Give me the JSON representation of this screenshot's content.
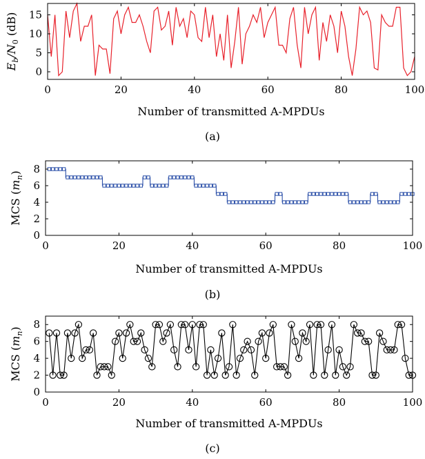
{
  "chart_data": [
    {
      "type": "line",
      "panel": "a",
      "caption": "(a)",
      "xlabel": "Number of transmitted A-MPDUs",
      "ylabel_main": "E",
      "ylabel_sub1": "b",
      "ylabel_mid": "/N",
      "ylabel_sub2": "0",
      "ylabel_unit": " (dB)",
      "xlim": [
        0,
        100
      ],
      "ylim": [
        -2,
        18
      ],
      "xticks": [
        "0",
        "20",
        "40",
        "60",
        "80",
        "100"
      ],
      "yticks": [
        "0",
        "5",
        "10",
        "15"
      ],
      "colors": {
        "line": "#e8202a"
      },
      "series": [
        {
          "x": [
            0,
            1,
            2,
            3,
            4,
            5,
            6,
            7,
            8,
            9,
            10,
            11,
            12,
            13,
            14,
            15,
            16,
            17,
            18,
            19,
            20,
            21,
            22,
            23,
            24,
            25,
            26,
            27,
            28,
            29,
            30,
            31,
            32,
            33,
            34,
            35,
            36,
            37,
            38,
            39,
            40,
            41,
            42,
            43,
            44,
            45,
            46,
            47,
            48,
            49,
            50,
            51,
            52,
            53,
            54,
            55,
            56,
            57,
            58,
            59,
            60,
            61,
            62,
            63,
            64,
            65,
            66,
            67,
            68,
            69,
            70,
            71,
            72,
            73,
            74,
            75,
            76,
            77,
            78,
            79,
            80,
            81,
            82,
            83,
            84,
            85,
            86,
            87,
            88,
            89,
            90,
            91,
            92,
            93,
            94,
            95,
            96,
            97,
            98,
            99,
            100
          ],
          "values": [
            15,
            4,
            15,
            -1,
            0,
            16,
            9,
            16,
            18,
            8,
            12,
            12,
            15,
            -1,
            7,
            6,
            6,
            -0.5,
            14,
            16,
            10,
            15,
            17,
            13,
            13,
            15,
            12,
            8,
            5,
            16,
            17,
            11,
            12,
            16,
            7,
            17,
            12,
            14,
            9,
            16,
            15,
            9,
            8,
            17,
            9,
            15,
            4,
            10,
            3,
            15,
            1,
            8,
            17,
            2,
            10,
            12,
            15,
            13,
            17,
            9,
            13,
            15,
            17,
            7,
            7,
            5,
            14,
            17,
            7,
            1,
            17,
            10,
            15,
            17,
            3,
            13,
            8,
            15,
            12,
            5,
            16,
            12,
            4,
            -1,
            6,
            17,
            15,
            16,
            13,
            1,
            0.5,
            15,
            13,
            12,
            12,
            17,
            17,
            1,
            -1,
            0,
            4
          ]
        }
      ]
    },
    {
      "type": "line",
      "panel": "b",
      "caption": "(b)",
      "xlabel": "Number of transmitted A-MPDUs",
      "ylabel_main": "MCS (",
      "ylabel_var": "m",
      "ylabel_sub": "n",
      "ylabel_end": ")",
      "xlim": [
        0,
        100
      ],
      "ylim": [
        0,
        9
      ],
      "xticks": [
        "0",
        "20",
        "40",
        "60",
        "80",
        "100"
      ],
      "yticks": [
        "0",
        "2",
        "4",
        "6",
        "8"
      ],
      "colors": {
        "line": "#2b4fa8",
        "marker": "#2b4fa8"
      },
      "series": [
        {
          "x": [
            1,
            2,
            3,
            4,
            5,
            6,
            7,
            8,
            9,
            10,
            11,
            12,
            13,
            14,
            15,
            16,
            17,
            18,
            19,
            20,
            21,
            22,
            23,
            24,
            25,
            26,
            27,
            28,
            29,
            30,
            31,
            32,
            33,
            34,
            35,
            36,
            37,
            38,
            39,
            40,
            41,
            42,
            43,
            44,
            45,
            46,
            47,
            48,
            49,
            50,
            51,
            52,
            53,
            54,
            55,
            56,
            57,
            58,
            59,
            60,
            61,
            62,
            63,
            64,
            65,
            66,
            67,
            68,
            69,
            70,
            71,
            72,
            73,
            74,
            75,
            76,
            77,
            78,
            79,
            80,
            81,
            82,
            83,
            84,
            85,
            86,
            87,
            88,
            89,
            90,
            91,
            92,
            93,
            94,
            95,
            96,
            97,
            98,
            99,
            100
          ],
          "values": [
            8,
            8,
            8,
            8,
            8,
            7,
            7,
            7,
            7,
            7,
            7,
            7,
            7,
            7,
            7,
            6,
            6,
            6,
            6,
            6,
            6,
            6,
            6,
            6,
            6,
            6,
            7,
            7,
            6,
            6,
            6,
            6,
            6,
            7,
            7,
            7,
            7,
            7,
            7,
            7,
            6,
            6,
            6,
            6,
            6,
            6,
            5,
            5,
            5,
            4,
            4,
            4,
            4,
            4,
            4,
            4,
            4,
            4,
            4,
            4,
            4,
            4,
            5,
            5,
            4,
            4,
            4,
            4,
            4,
            4,
            4,
            5,
            5,
            5,
            5,
            5,
            5,
            5,
            5,
            5,
            5,
            5,
            4,
            4,
            4,
            4,
            4,
            4,
            5,
            5,
            4,
            4,
            4,
            4,
            4,
            4,
            5,
            5,
            5,
            5
          ]
        }
      ]
    },
    {
      "type": "line",
      "panel": "c",
      "caption": "(c)",
      "xlabel": "Number of transmitted A-MPDUs",
      "ylabel_main": "MCS (",
      "ylabel_var": "m",
      "ylabel_sub": "n",
      "ylabel_end": ")",
      "xlim": [
        0,
        100
      ],
      "ylim": [
        0,
        9
      ],
      "xticks": [
        "0",
        "20",
        "40",
        "60",
        "80",
        "100"
      ],
      "yticks": [
        "0",
        "2",
        "4",
        "6",
        "8"
      ],
      "colors": {
        "line": "#000000",
        "marker": "#000000"
      },
      "series": [
        {
          "x": [
            1,
            2,
            3,
            4,
            5,
            6,
            7,
            8,
            9,
            10,
            11,
            12,
            13,
            14,
            15,
            16,
            17,
            18,
            19,
            20,
            21,
            22,
            23,
            24,
            25,
            26,
            27,
            28,
            29,
            30,
            31,
            32,
            33,
            34,
            35,
            36,
            37,
            38,
            39,
            40,
            41,
            42,
            43,
            44,
            45,
            46,
            47,
            48,
            49,
            50,
            51,
            52,
            53,
            54,
            55,
            56,
            57,
            58,
            59,
            60,
            61,
            62,
            63,
            64,
            65,
            66,
            67,
            68,
            69,
            70,
            71,
            72,
            73,
            74,
            75,
            76,
            77,
            78,
            79,
            80,
            81,
            82,
            83,
            84,
            85,
            86,
            87,
            88,
            89,
            90,
            91,
            92,
            93,
            94,
            95,
            96,
            97,
            98,
            99,
            100
          ],
          "values": [
            7,
            2,
            7,
            2,
            2,
            7,
            4,
            7,
            8,
            4,
            5,
            5,
            7,
            2,
            3,
            3,
            3,
            2,
            6,
            7,
            4,
            7,
            8,
            6,
            6,
            7,
            5,
            4,
            3,
            8,
            8,
            6,
            7,
            8,
            5,
            3,
            8,
            8,
            5,
            8,
            3,
            8,
            8,
            2,
            5,
            2,
            4,
            7,
            2,
            3,
            8,
            2,
            4,
            5,
            6,
            5,
            2,
            6,
            7,
            4,
            7,
            8,
            3,
            3,
            3,
            2,
            8,
            6,
            4,
            7,
            6,
            8,
            2,
            8,
            8,
            2,
            5,
            8,
            2,
            5,
            3,
            2,
            3,
            8,
            7,
            7,
            6,
            6,
            2,
            2,
            7,
            6,
            5,
            5,
            5,
            8,
            8,
            4,
            2,
            2
          ]
        }
      ]
    }
  ]
}
